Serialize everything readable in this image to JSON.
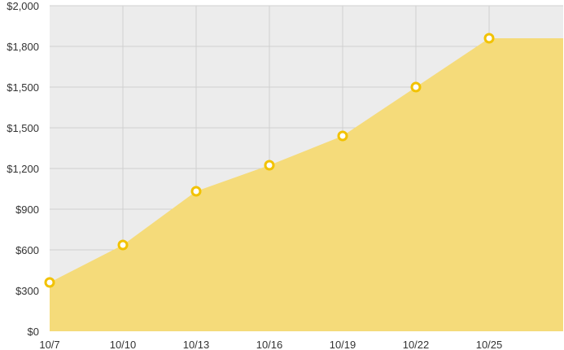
{
  "colors": {
    "plot_background": "#ececec",
    "grid": "#d0d0d0",
    "area_fill": "#f5db7a",
    "marker_stroke": "#f2c200",
    "marker_fill": "#ffffff"
  },
  "chart_data": {
    "type": "area",
    "title": "",
    "xlabel": "",
    "ylabel": "",
    "x_tick_labels": [
      "10/7",
      "10/10",
      "10/13",
      "10/16",
      "10/19",
      "10/22",
      "10/25"
    ],
    "y_tick_labels": [
      "$0",
      "$300",
      "$600",
      "$900",
      "$1,200",
      "$1,500",
      "$1,500",
      "$1,800",
      "$2,000"
    ],
    "grid": true,
    "legend": "none",
    "series": [
      {
        "points": [
          {
            "x": "10/7",
            "y": 300
          },
          {
            "x": "10/10",
            "y": 530
          },
          {
            "x": "10/13",
            "y": 860
          },
          {
            "x": "10/16",
            "y": 1020
          },
          {
            "x": "10/19",
            "y": 1200
          },
          {
            "x": "10/22",
            "y": 1500
          },
          {
            "x": "10/25",
            "y": 1800
          }
        ],
        "extends_to_right_edge": true
      }
    ]
  }
}
